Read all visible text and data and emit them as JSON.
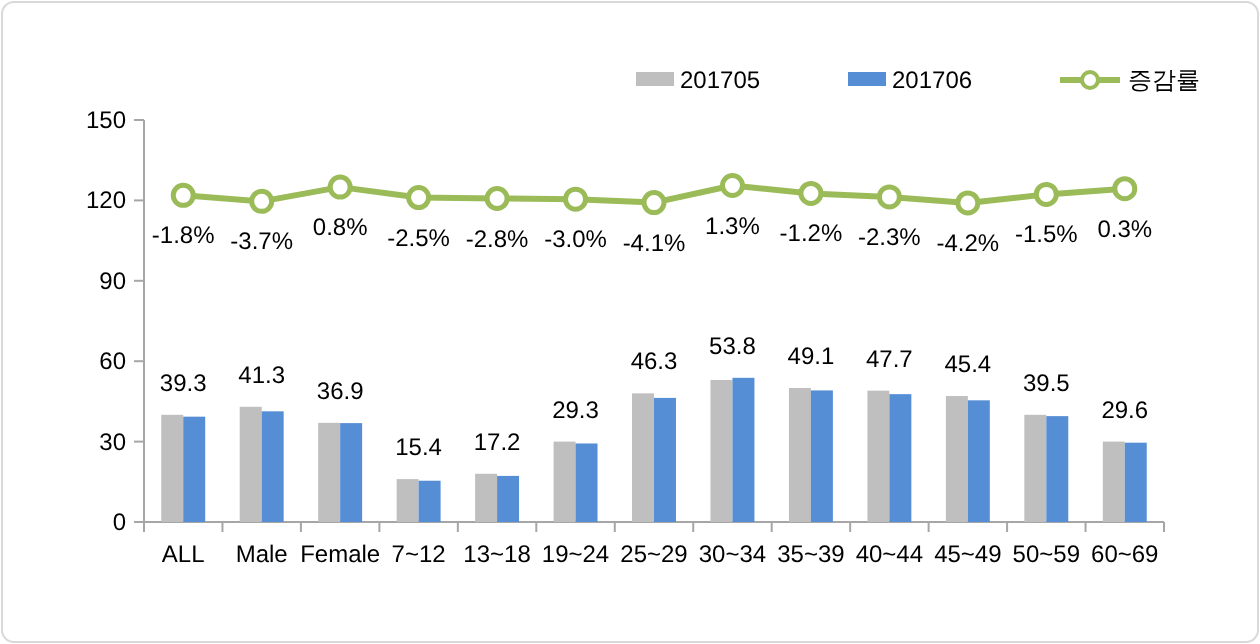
{
  "chart_data": {
    "type": "bar",
    "categories": [
      "ALL",
      "Male",
      "Female",
      "7~12",
      "13~18",
      "19~24",
      "25~29",
      "30~34",
      "35~39",
      "40~44",
      "45~49",
      "50~59",
      "60~69"
    ],
    "series": [
      {
        "name": "201705",
        "color": "#bfbfbf",
        "values": [
          40,
          43,
          37,
          16,
          18,
          30,
          48,
          53,
          50,
          49,
          47,
          40,
          30
        ]
      },
      {
        "name": "201706",
        "color": "#558ed5",
        "values": [
          39.3,
          41.3,
          36.9,
          15.4,
          17.2,
          29.3,
          46.3,
          53.8,
          49.1,
          47.7,
          45.4,
          39.5,
          29.6
        ],
        "value_labels": [
          "39.3",
          "41.3",
          "36.9",
          "15.4",
          "17.2",
          "29.3",
          "46.3",
          "53.8",
          "49.1",
          "47.7",
          "45.4",
          "39.5",
          "29.6"
        ]
      },
      {
        "name": "증감률",
        "type": "line",
        "axis": "y2",
        "color": "#9bbb59",
        "marker": "circle",
        "values": [
          -1.8,
          -3.7,
          0.8,
          -2.5,
          -2.8,
          -3.0,
          -4.1,
          1.3,
          -1.2,
          -2.3,
          -4.2,
          -1.5,
          0.3
        ],
        "value_labels": [
          "-1.8%",
          "-3.7%",
          "0.8%",
          "-2.5%",
          "-2.8%",
          "-3.0%",
          "-4.1%",
          "1.3%",
          "-1.2%",
          "-2.3%",
          "-4.2%",
          "-1.5%",
          "0.3%"
        ]
      }
    ],
    "ylim": [
      0,
      150
    ],
    "yticks": [
      0,
      30,
      60,
      90,
      120,
      150
    ],
    "y2lim": [
      -105,
      22
    ],
    "tick_labels": [
      "x",
      "y"
    ],
    "grid": false,
    "legend": "top right"
  }
}
